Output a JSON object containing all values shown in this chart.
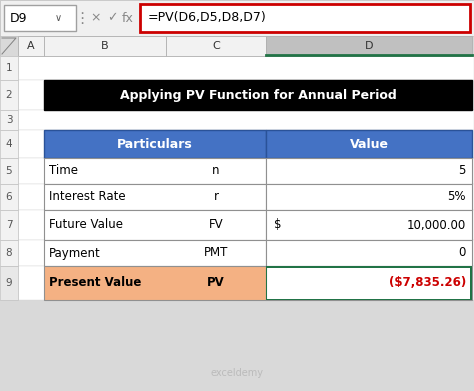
{
  "title": "Applying PV Function for Annual Period",
  "formula_bar_cell": "D9",
  "formula_bar_formula": "=PV(D6,D5,D8,D7)",
  "col_headers": [
    "A",
    "B",
    "C",
    "D"
  ],
  "row_numbers": [
    "1",
    "2",
    "3",
    "4",
    "5",
    "6",
    "7",
    "8",
    "9"
  ],
  "table_header": [
    "Particulars",
    "Value"
  ],
  "rows": [
    {
      "label": "Time",
      "symbol": "n",
      "value": "5",
      "dollar": false
    },
    {
      "label": "Interest Rate",
      "symbol": "r",
      "value": "5%",
      "dollar": false
    },
    {
      "label": "Future Value",
      "symbol": "FV",
      "value": "10,000.00",
      "dollar": true
    },
    {
      "label": "Payment",
      "symbol": "PMT",
      "value": "0",
      "dollar": false
    },
    {
      "label": "Present Value",
      "symbol": "PV",
      "value": "($7,835.26)",
      "dollar": false
    }
  ],
  "header_bg": "#000000",
  "header_fg": "#ffffff",
  "table_header_bg": "#4472c4",
  "table_header_fg": "#ffffff",
  "table_border_color": "#808080",
  "pv_row_bg": "#f4b183",
  "pv_value_fg": "#cc0000",
  "formula_box_border": "#cc0000",
  "excel_bg": "#d9d9d9",
  "row_header_bg": "#f2f2f2",
  "col_D_header_bg": "#c0c0c0",
  "col_D_border_bottom": "#217346",
  "watermark": "exceldemy",
  "formula_bar_bg": "#ffffff",
  "name_box_bg": "#ffffff"
}
